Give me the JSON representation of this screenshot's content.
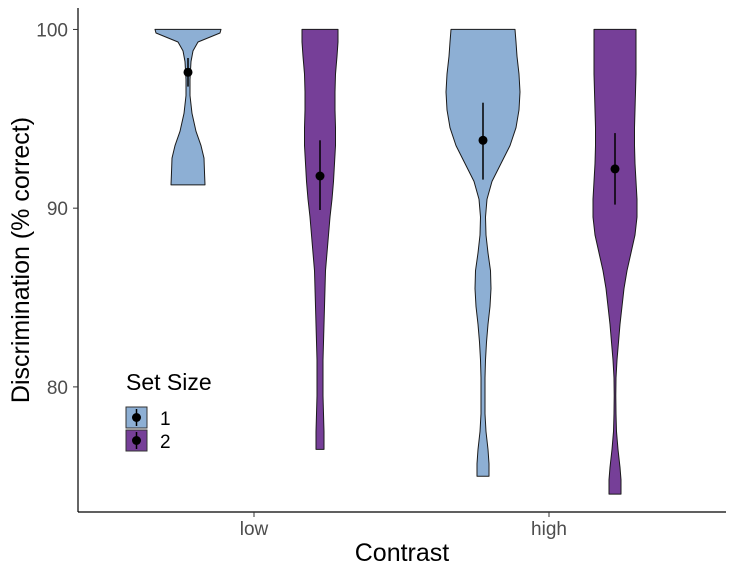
{
  "chart_data": {
    "type": "violin",
    "xlabel": "Contrast",
    "ylabel": "Discrimination (% correct)",
    "categories": [
      "low",
      "high"
    ],
    "ylim": [
      73,
      101.2
    ],
    "yticks": [
      80,
      90,
      100
    ],
    "grid": false,
    "legend": {
      "title": "Set Size",
      "position": "bottom-left",
      "entries": [
        {
          "label": "1",
          "color": "#8DAFD4"
        },
        {
          "label": "2",
          "color": "#763F98"
        }
      ]
    },
    "series": [
      {
        "name": "1",
        "color": "#8DAFD4",
        "violins": [
          {
            "category": "low",
            "mean": 97.6,
            "ci": [
              96.8,
              98.4
            ],
            "profile": [
              [
                91.3,
                17
              ],
              [
                92.0,
                16.5
              ],
              [
                92.8,
                16
              ],
              [
                93.5,
                13
              ],
              [
                94.3,
                8
              ],
              [
                95.3,
                4
              ],
              [
                96.3,
                2
              ],
              [
                97.2,
                2
              ],
              [
                98.2,
                3
              ],
              [
                98.8,
                5
              ],
              [
                99.3,
                10
              ],
              [
                99.8,
                32
              ],
              [
                100,
                33
              ]
            ]
          },
          {
            "category": "high",
            "mean": 93.8,
            "ci": [
              91.6,
              95.9
            ],
            "profile": [
              [
                75,
                6
              ],
              [
                75.7,
                6
              ],
              [
                76.5,
                5
              ],
              [
                77.5,
                3
              ],
              [
                78.5,
                2
              ],
              [
                79.5,
                2
              ],
              [
                80.5,
                2
              ],
              [
                81.5,
                2.5
              ],
              [
                82.5,
                3.5
              ],
              [
                83.5,
                5
              ],
              [
                84.5,
                7
              ],
              [
                85.5,
                8
              ],
              [
                86.5,
                7.5
              ],
              [
                87.5,
                5
              ],
              [
                88.5,
                3
              ],
              [
                89.5,
                2.5
              ],
              [
                90.5,
                4
              ],
              [
                91.5,
                9
              ],
              [
                92.5,
                18
              ],
              [
                93.5,
                27
              ],
              [
                94.5,
                33
              ],
              [
                95.5,
                36
              ],
              [
                96.5,
                37
              ],
              [
                97.5,
                36
              ],
              [
                98.5,
                34
              ],
              [
                99.3,
                33
              ],
              [
                100,
                32
              ]
            ]
          }
        ]
      },
      {
        "name": "2",
        "color": "#763F98",
        "violins": [
          {
            "category": "low",
            "mean": 91.8,
            "ci": [
              89.9,
              93.8
            ],
            "profile": [
              [
                76.5,
                4
              ],
              [
                77.5,
                4
              ],
              [
                78.5,
                3.5
              ],
              [
                79.5,
                3
              ],
              [
                80.5,
                3
              ],
              [
                81.5,
                3
              ],
              [
                82.5,
                3.5
              ],
              [
                83.5,
                4
              ],
              [
                84.5,
                4.5
              ],
              [
                85.5,
                5
              ],
              [
                86.5,
                5.5
              ],
              [
                87.5,
                7
              ],
              [
                88.5,
                8.5
              ],
              [
                89.5,
                10
              ],
              [
                90.5,
                12
              ],
              [
                91.5,
                13.5
              ],
              [
                92.5,
                14.5
              ],
              [
                93.5,
                15.5
              ],
              [
                94.5,
                15.5
              ],
              [
                95.5,
                15
              ],
              [
                96.5,
                15
              ],
              [
                97.5,
                15.5
              ],
              [
                98.5,
                17
              ],
              [
                99.3,
                18
              ],
              [
                100,
                18
              ]
            ]
          },
          {
            "category": "high",
            "mean": 92.2,
            "ci": [
              90.2,
              94.2
            ],
            "profile": [
              [
                74,
                6
              ],
              [
                74.8,
                6
              ],
              [
                75.5,
                5
              ],
              [
                76.5,
                3
              ],
              [
                77.5,
                1.5
              ],
              [
                78.5,
                1
              ],
              [
                79.5,
                0.8
              ],
              [
                80.5,
                1
              ],
              [
                81.5,
                2
              ],
              [
                82.5,
                3.5
              ],
              [
                83.5,
                5
              ],
              [
                84.5,
                7
              ],
              [
                85.5,
                9
              ],
              [
                86.5,
                12
              ],
              [
                87.5,
                16
              ],
              [
                88.5,
                20
              ],
              [
                89.5,
                22
              ],
              [
                90.5,
                22
              ],
              [
                91.5,
                21
              ],
              [
                92.5,
                20
              ],
              [
                93.5,
                19.5
              ],
              [
                94.5,
                19.5
              ],
              [
                95.5,
                20
              ],
              [
                96.5,
                20.5
              ],
              [
                97.5,
                21
              ],
              [
                98.5,
                21
              ],
              [
                99.3,
                21
              ],
              [
                100,
                21
              ]
            ]
          }
        ]
      }
    ]
  }
}
